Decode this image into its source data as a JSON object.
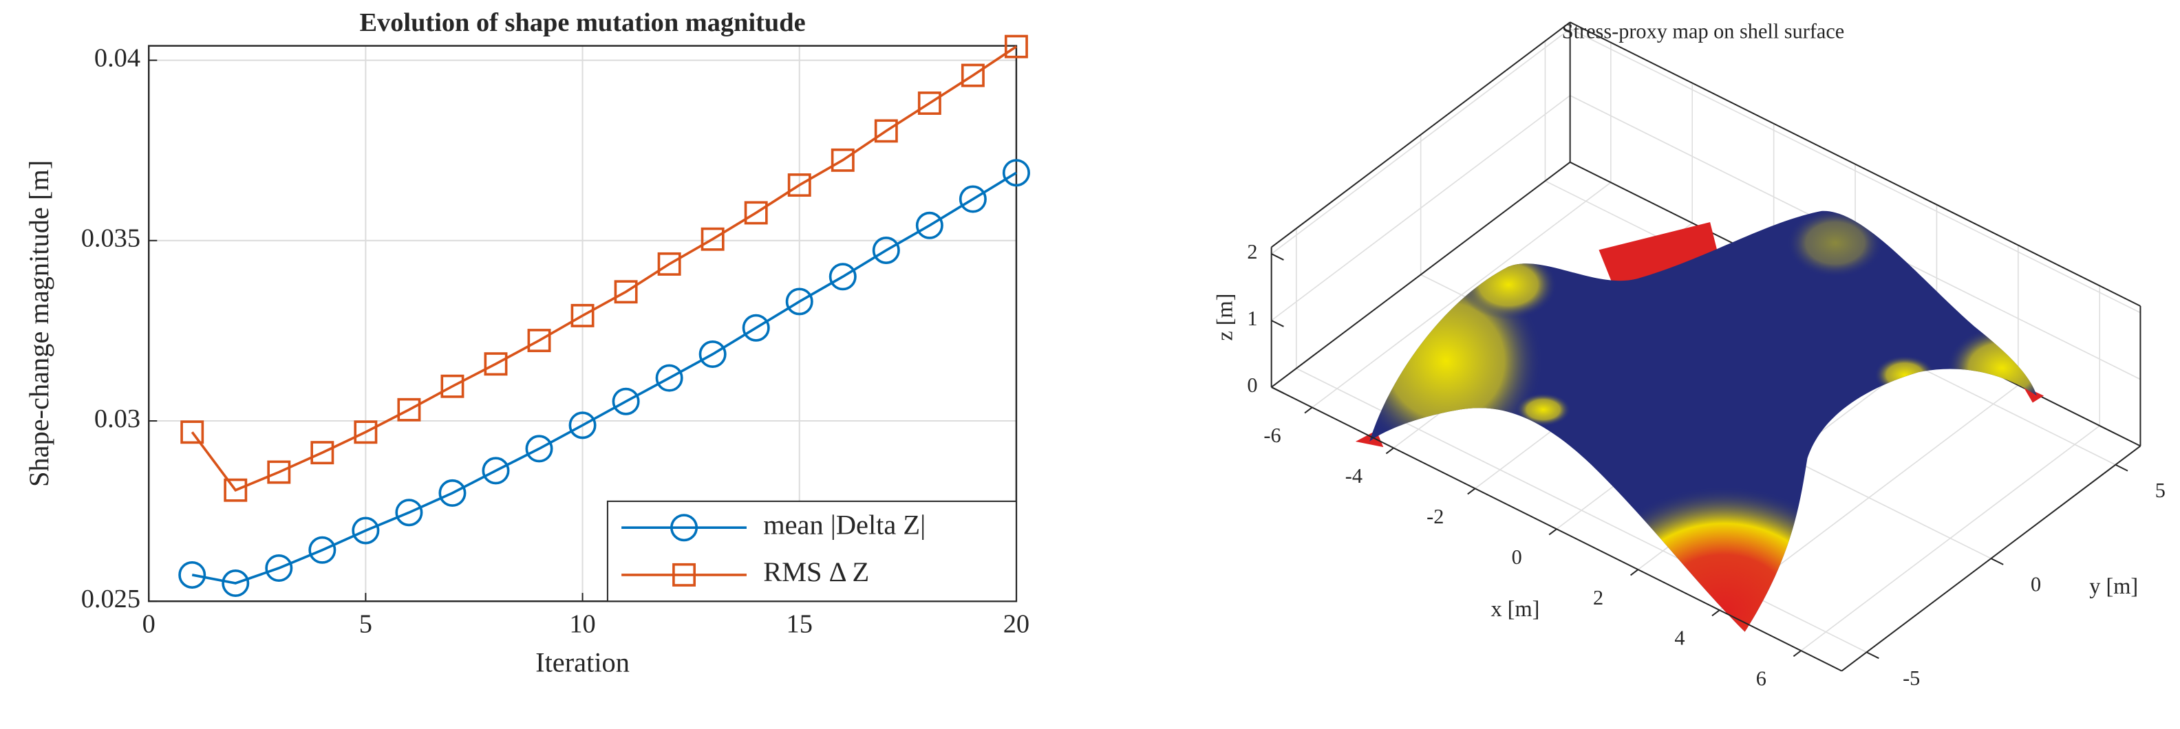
{
  "chart_data": [
    {
      "type": "line",
      "title": "Evolution of shape mutation magnitude",
      "xlabel": "Iteration",
      "ylabel": "Shape-change magnitude [m]",
      "x": [
        1,
        2,
        3,
        4,
        5,
        6,
        7,
        8,
        9,
        10,
        11,
        12,
        13,
        14,
        15,
        16,
        17,
        18,
        19,
        20
      ],
      "series": [
        {
          "name": "mean |Delta Z|",
          "color": "#0072BD",
          "marker": "circle",
          "values": [
            0.02573,
            0.0255,
            0.02592,
            0.02642,
            0.02696,
            0.02746,
            0.028,
            0.02862,
            0.02923,
            0.02988,
            0.03054,
            0.03119,
            0.03185,
            0.03258,
            0.03331,
            0.034,
            0.03473,
            0.03542,
            0.03615,
            0.03688
          ]
        },
        {
          "name": "RMS Δ Z",
          "color": "#D95319",
          "marker": "square",
          "values": [
            0.02969,
            0.02808,
            0.02858,
            0.02912,
            0.02969,
            0.03031,
            0.03096,
            0.03158,
            0.03223,
            0.03292,
            0.03358,
            0.03435,
            0.03504,
            0.03577,
            0.03654,
            0.03723,
            0.03804,
            0.03881,
            0.03958,
            0.04038
          ]
        }
      ],
      "xlim": [
        0,
        20
      ],
      "xticks": [
        0,
        5,
        10,
        15,
        20
      ],
      "ylim": [
        0.025,
        0.0404
      ],
      "yticks": [
        0.025,
        0.03,
        0.035,
        0.04
      ],
      "grid": true,
      "legend": "lower right"
    },
    {
      "type": "surface",
      "title": "Stress-proxy map on shell surface",
      "xlabel": "x [m]",
      "ylabel": "y [m]",
      "zlabel": "z [m]",
      "xlim": [
        -7,
        7
      ],
      "xticks": [
        -6,
        -4,
        -2,
        0,
        2,
        4,
        6
      ],
      "ylim": [
        -6,
        6
      ],
      "yticks": [
        -5,
        0,
        5
      ],
      "zlim": [
        0,
        2.1
      ],
      "zticks": [
        0,
        1,
        2
      ],
      "grid": true
    }
  ]
}
